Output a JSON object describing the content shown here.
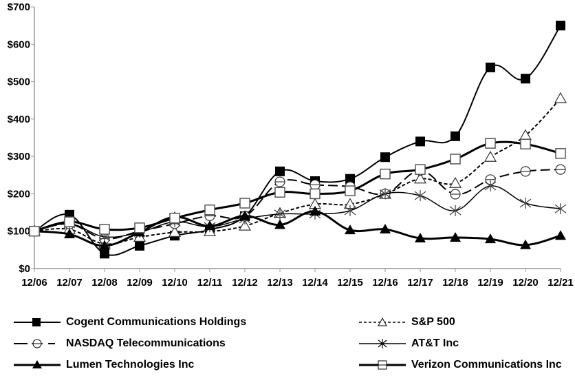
{
  "chart_data": {
    "type": "line",
    "title": "",
    "xlabel": "",
    "ylabel": "",
    "categories": [
      "12/06",
      "12/07",
      "12/08",
      "12/09",
      "12/10",
      "12/11",
      "12/12",
      "12/13",
      "12/14",
      "12/15",
      "12/16",
      "12/17",
      "12/18",
      "12/19",
      "12/20",
      "12/21"
    ],
    "y_ticks": [
      "$0",
      "$100",
      "$200",
      "$300",
      "$400",
      "$500",
      "$600",
      "$700"
    ],
    "ylim": [
      0,
      700
    ],
    "grid": false,
    "legend_position": "bottom",
    "series": [
      {
        "name": "Cogent Communications Holdings",
        "marker": "filled-square",
        "line": "solid",
        "width": 2,
        "values": [
          100,
          144,
          40,
          61,
          88,
          104,
          140,
          260,
          234,
          240,
          298,
          340,
          354,
          538,
          508,
          650
        ]
      },
      {
        "name": "S&P 500",
        "marker": "open-triangle",
        "line": "dotted",
        "width": 2,
        "values": [
          100,
          105,
          66,
          84,
          97,
          99,
          114,
          148,
          172,
          172,
          199,
          240,
          228,
          298,
          356,
          455
        ]
      },
      {
        "name": "NASDAQ Telecommunications",
        "marker": "open-circle",
        "line": "dashed",
        "width": 2,
        "values": [
          100,
          119,
          80,
          100,
          120,
          141,
          140,
          232,
          224,
          219,
          200,
          262,
          199,
          238,
          260,
          265
        ]
      },
      {
        "name": "AT&T Inc",
        "marker": "asterisk",
        "line": "solid",
        "width": 1.5,
        "values": [
          100,
          120,
          85,
          97,
          125,
          112,
          133,
          146,
          146,
          155,
          200,
          195,
          155,
          221,
          175,
          160
        ]
      },
      {
        "name": "Lumen Technologies Inc",
        "marker": "filled-triangle",
        "line": "solid",
        "width": 3,
        "values": [
          100,
          92,
          61,
          97,
          138,
          114,
          141,
          117,
          153,
          103,
          105,
          81,
          83,
          79,
          63,
          88
        ]
      },
      {
        "name": "Verizon Communications Inc",
        "marker": "open-square",
        "line": "solid",
        "width": 3,
        "values": [
          100,
          125,
          105,
          109,
          135,
          157,
          175,
          204,
          200,
          208,
          253,
          265,
          293,
          335,
          333,
          308
        ]
      }
    ]
  },
  "legend": {
    "items": [
      {
        "label": "Cogent Communications Holdings"
      },
      {
        "label": "S&P 500"
      },
      {
        "label": "NASDAQ Telecommunications"
      },
      {
        "label": "AT&T Inc"
      },
      {
        "label": "Lumen Technologies Inc"
      },
      {
        "label": "Verizon Communications Inc"
      }
    ]
  },
  "colors": {
    "line": "#000000",
    "axis": "#999999",
    "background": "#ffffff"
  }
}
